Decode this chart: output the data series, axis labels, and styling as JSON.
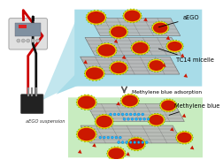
{
  "bg_color": "#ffffff",
  "upper_bubble_color": "#a8dce8",
  "lower_bubble_color": "#c8ecc0",
  "sheet_color": "#b8b8b8",
  "sheet_grid_color": "#606060",
  "micelle_yellow": "#f0d000",
  "micelle_red": "#cc1800",
  "micelle_green": "#44aa00",
  "mb_dot_color": "#22bbff",
  "mb_edge_color": "#0077cc",
  "small_particle_color": "#cc1800",
  "label_aEGO": "aEGO",
  "label_TC14": "TC14 micelle",
  "label_mb_adsorption": "Methylene blue adsorption",
  "label_mb": "Methylene blue",
  "label_suspension": "aEGO suspension",
  "annotation_fontsize": 4.8,
  "small_fontsize": 4.2,
  "device_body_color": "#e0e0e0",
  "device_screen_color": "#c8c8d8",
  "beaker_color": "#222222"
}
